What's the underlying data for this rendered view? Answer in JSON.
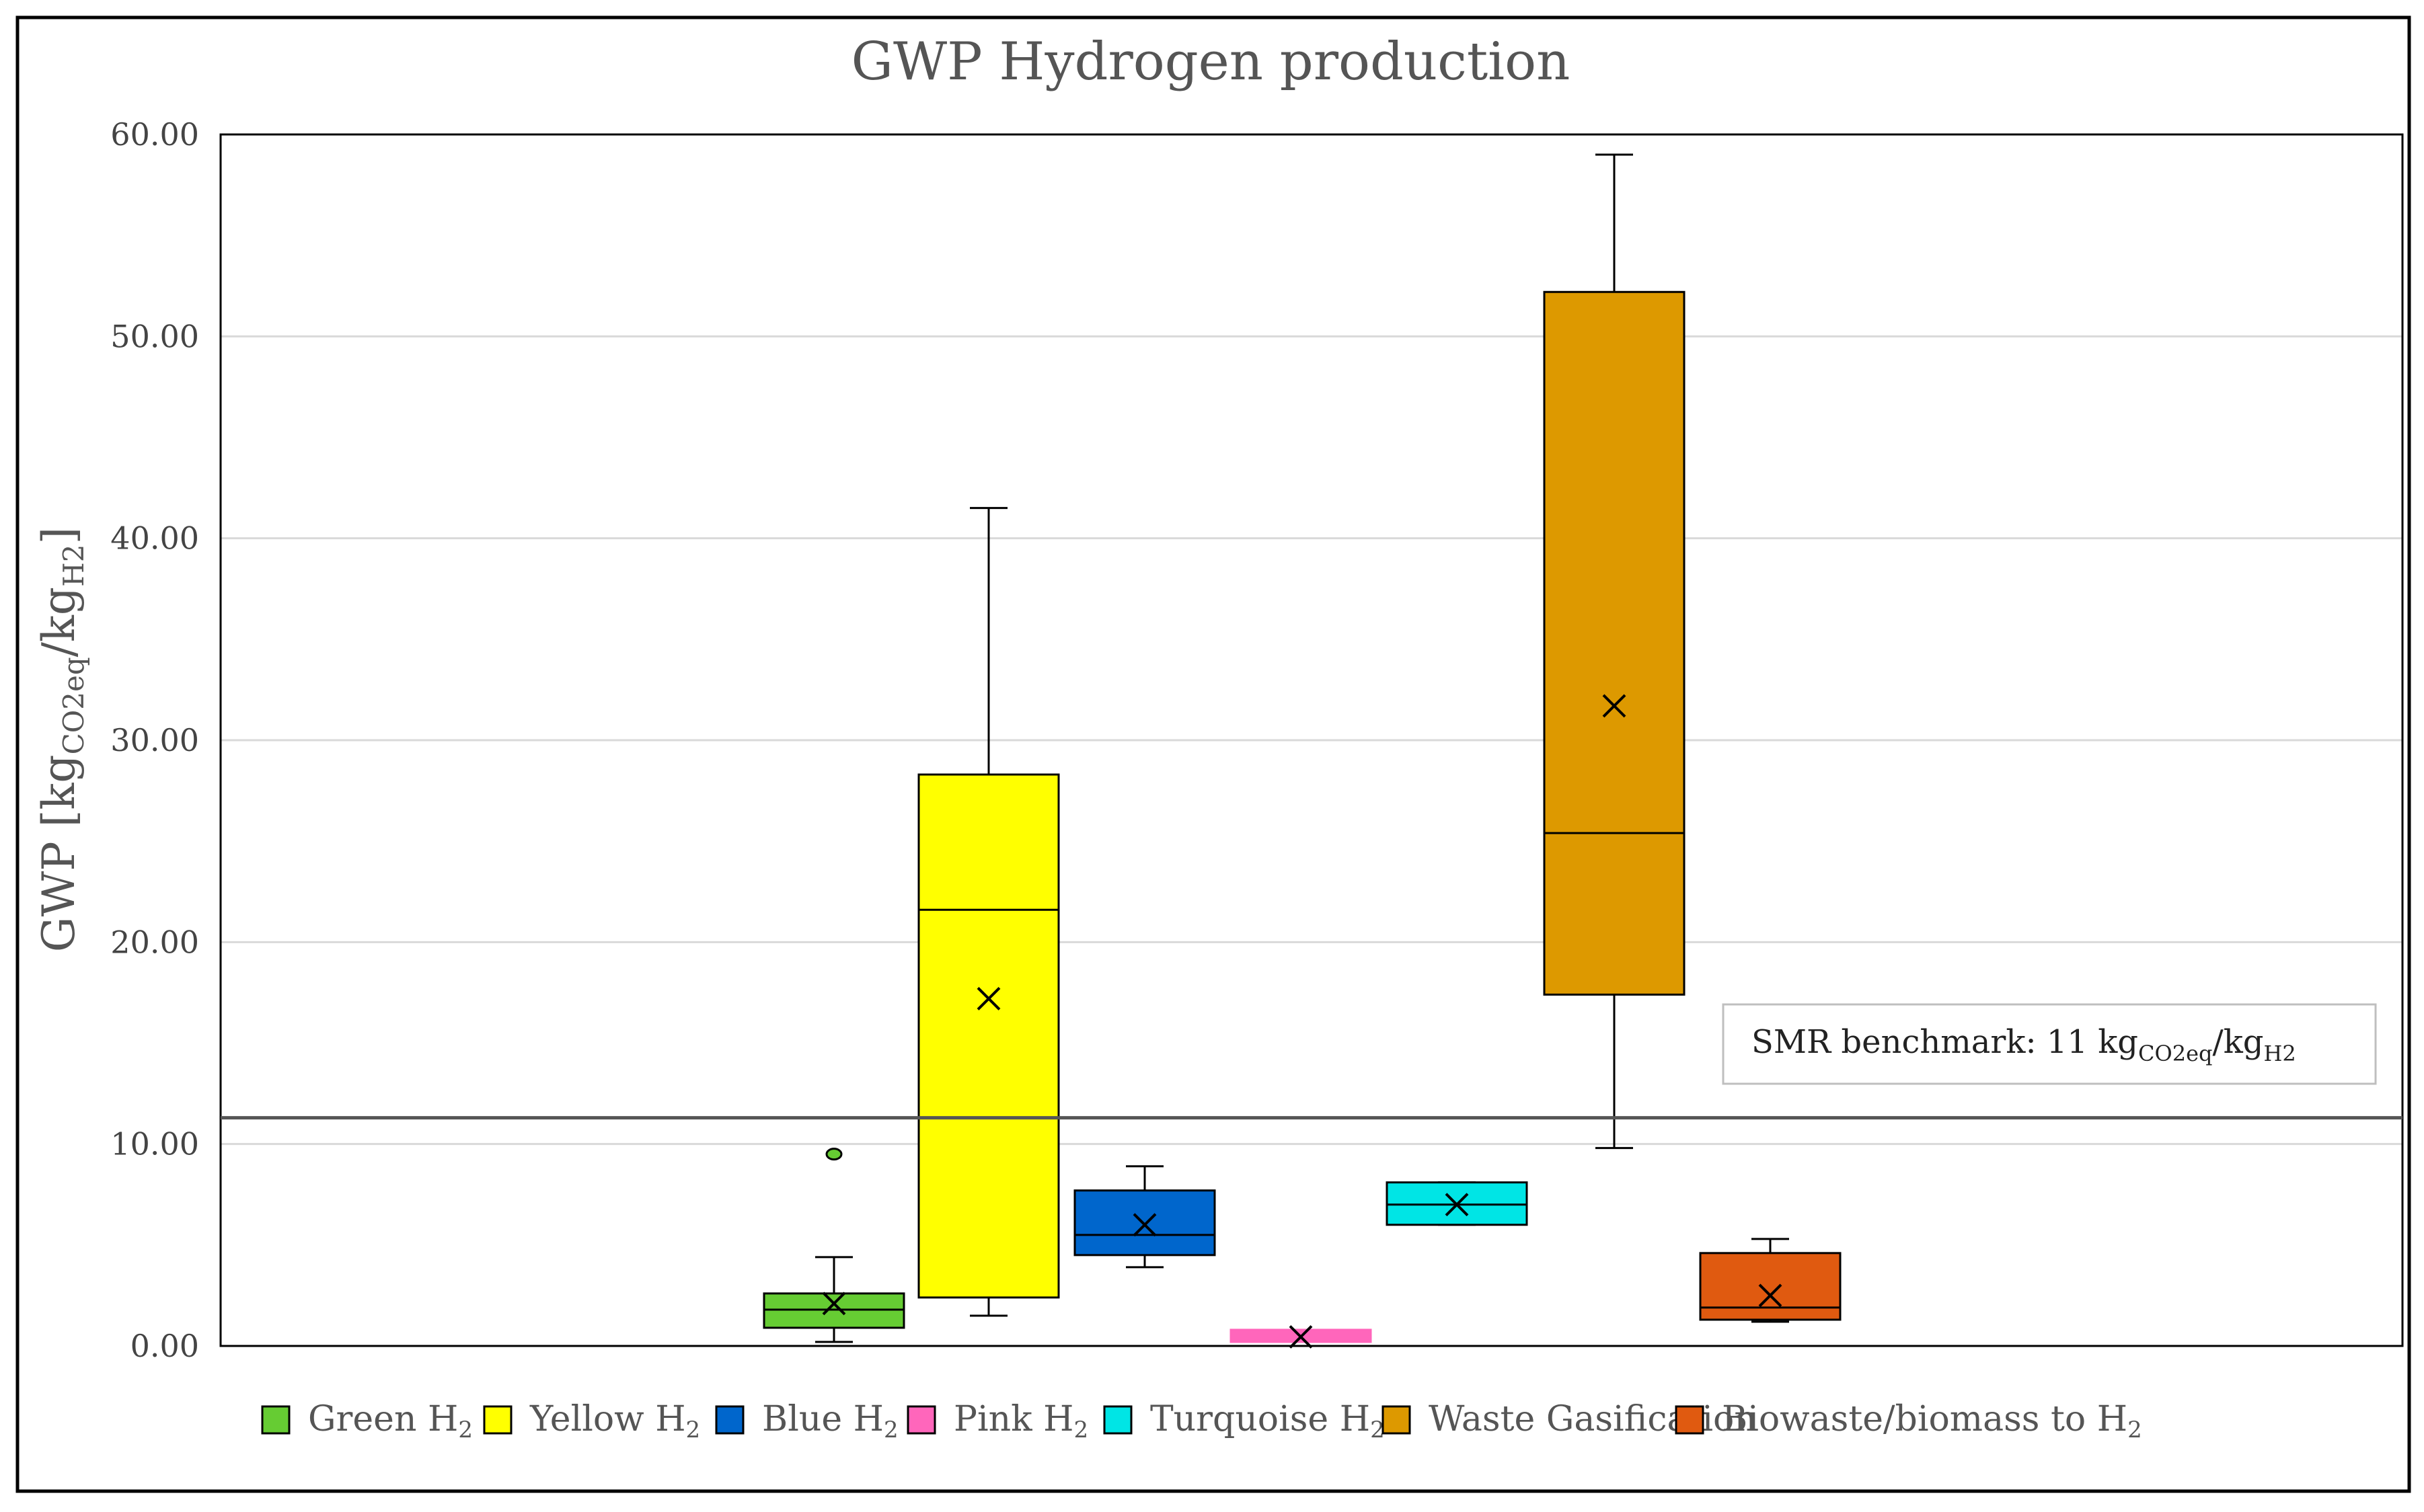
{
  "chart_data": {
    "type": "box",
    "title": "GWP Hydrogen production",
    "ylabel": {
      "main": "GWP [kg",
      "sub1": "CO2eq",
      "mid": "/kg",
      "sub2": "H2",
      "end": "]"
    },
    "ylim": [
      0,
      60
    ],
    "yticks": [
      "0.00",
      "10.00",
      "20.00",
      "30.00",
      "40.00",
      "50.00",
      "60.00"
    ],
    "ytick_values": [
      0,
      10,
      20,
      30,
      40,
      50,
      60
    ],
    "grid": true,
    "benchmark": {
      "value": 11.3,
      "label_main": "SMR benchmark: 11 kg",
      "label_sub1": "CO2eq",
      "label_mid": "/kg",
      "label_sub2": "H2"
    },
    "series": [
      {
        "name": "Green H",
        "sub": "2",
        "color": "#66cc33",
        "min": 0.2,
        "q1": 0.9,
        "median": 1.8,
        "q3": 2.6,
        "max": 4.4,
        "mean": 2.1,
        "outliers": [
          9.5
        ]
      },
      {
        "name": "Yellow H",
        "sub": "2",
        "color": "#ffff00",
        "min": 1.5,
        "q1": 2.4,
        "median": 21.6,
        "q3": 28.3,
        "max": 41.5,
        "mean": 17.2,
        "outliers": []
      },
      {
        "name": "Blue H",
        "sub": "2",
        "color": "#0066cc",
        "min": 3.9,
        "q1": 4.5,
        "median": 5.5,
        "q3": 7.7,
        "max": 8.9,
        "mean": 6.0,
        "outliers": []
      },
      {
        "name": "Pink H",
        "sub": "2",
        "color": "#ff66bb",
        "min": 0.2,
        "q1": 0.2,
        "median": 0.5,
        "q3": 0.8,
        "max": 0.8,
        "mean": 0.45,
        "outliers": []
      },
      {
        "name": "Turquoise H",
        "sub": "2",
        "color": "#00e5e5",
        "min": 6.0,
        "q1": 6.0,
        "median": 7.0,
        "q3": 8.1,
        "max": 8.1,
        "mean": 7.0,
        "outliers": []
      },
      {
        "name": "Waste Gasification",
        "sub": "",
        "color": "#dd9900",
        "min": 9.8,
        "q1": 17.4,
        "median": 25.4,
        "q3": 52.2,
        "max": 59.0,
        "mean": 31.7,
        "outliers": []
      },
      {
        "name": "Biowaste/biomass to H",
        "sub": "2",
        "color": "#e05a10",
        "min": 1.2,
        "q1": 1.3,
        "median": 1.9,
        "q3": 4.6,
        "max": 5.3,
        "mean": 2.5,
        "outliers": []
      }
    ]
  }
}
